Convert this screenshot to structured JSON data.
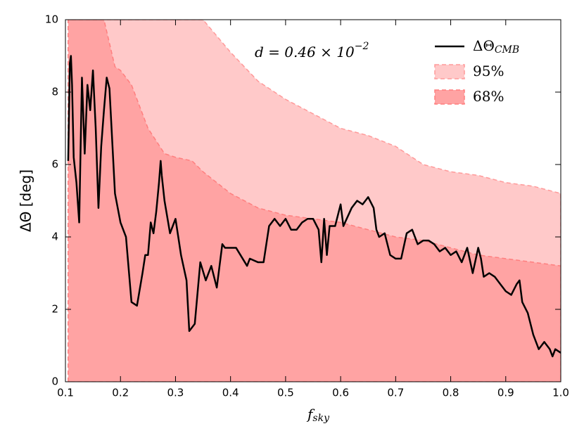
{
  "chart_data": {
    "type": "line",
    "y_label": "ΔΘ [deg]",
    "x_label": {
      "main": "f",
      "sub": "sky"
    },
    "annotation": {
      "main": "d = 0.46 × 10",
      "sup": "−2"
    },
    "xlim": [
      0.1,
      1.0
    ],
    "ylim": [
      0,
      10
    ],
    "xticks": [
      0.1,
      0.2,
      0.3,
      0.4,
      0.5,
      0.6,
      0.7,
      0.8,
      0.9,
      {
        "value": 1.0,
        "label": "1.0"
      }
    ],
    "yticks": [
      0,
      2,
      4,
      6,
      8,
      10
    ],
    "legend_position": "upper right",
    "series": [
      {
        "name": "95%",
        "kind": "area",
        "color": "#ffc9c9",
        "edge_color": "#ff9a9a",
        "x": [
          0.105,
          0.35,
          0.4,
          0.45,
          0.5,
          0.55,
          0.6,
          0.65,
          0.7,
          0.75,
          0.8,
          0.85,
          0.9,
          0.95,
          1.0
        ],
        "values": [
          10,
          10,
          9.1,
          8.3,
          7.8,
          7.4,
          7.0,
          6.8,
          6.5,
          6.0,
          5.8,
          5.7,
          5.5,
          5.4,
          5.2
        ]
      },
      {
        "name": "68%",
        "kind": "area",
        "color": "#ffa3a3",
        "edge_color": "#ff7f7f",
        "x": [
          0.105,
          0.17,
          0.19,
          0.2,
          0.22,
          0.25,
          0.28,
          0.3,
          0.33,
          0.35,
          0.4,
          0.45,
          0.5,
          0.55,
          0.6,
          0.65,
          0.7,
          0.75,
          0.8,
          0.85,
          0.9,
          0.95,
          1.0
        ],
        "values": [
          10,
          10,
          8.7,
          8.6,
          8.2,
          7.0,
          6.3,
          6.2,
          6.1,
          5.8,
          5.2,
          4.8,
          4.6,
          4.5,
          4.4,
          4.2,
          4.0,
          3.9,
          3.7,
          3.5,
          3.4,
          3.3,
          3.2
        ]
      },
      {
        "name": "ΔΘ",
        "name_sub": "CMB",
        "kind": "line",
        "color": "#000000",
        "x": [
          0.105,
          0.108,
          0.11,
          0.112,
          0.115,
          0.12,
          0.125,
          0.13,
          0.135,
          0.14,
          0.145,
          0.15,
          0.155,
          0.16,
          0.165,
          0.17,
          0.175,
          0.18,
          0.19,
          0.2,
          0.21,
          0.22,
          0.23,
          0.24,
          0.245,
          0.25,
          0.255,
          0.26,
          0.265,
          0.27,
          0.273,
          0.275,
          0.28,
          0.29,
          0.3,
          0.31,
          0.32,
          0.325,
          0.335,
          0.345,
          0.355,
          0.365,
          0.375,
          0.385,
          0.39,
          0.41,
          0.43,
          0.435,
          0.45,
          0.46,
          0.47,
          0.48,
          0.49,
          0.5,
          0.51,
          0.52,
          0.53,
          0.54,
          0.55,
          0.56,
          0.565,
          0.57,
          0.575,
          0.58,
          0.59,
          0.6,
          0.605,
          0.62,
          0.63,
          0.64,
          0.65,
          0.66,
          0.665,
          0.67,
          0.68,
          0.69,
          0.7,
          0.71,
          0.72,
          0.73,
          0.74,
          0.75,
          0.76,
          0.77,
          0.78,
          0.79,
          0.8,
          0.81,
          0.82,
          0.83,
          0.84,
          0.85,
          0.855,
          0.86,
          0.87,
          0.88,
          0.89,
          0.9,
          0.91,
          0.92,
          0.925,
          0.93,
          0.94,
          0.95,
          0.96,
          0.97,
          0.98,
          0.985,
          0.99,
          1.0
        ],
        "values": [
          6.1,
          8.8,
          9.0,
          8.2,
          6.2,
          5.5,
          4.4,
          8.4,
          6.3,
          8.2,
          7.5,
          8.6,
          7.0,
          4.8,
          6.5,
          7.5,
          8.4,
          8.1,
          5.2,
          4.4,
          4.0,
          2.2,
          2.1,
          3.0,
          3.5,
          3.5,
          4.4,
          4.1,
          4.7,
          5.5,
          6.1,
          5.7,
          5.0,
          4.1,
          4.5,
          3.5,
          2.8,
          1.4,
          1.6,
          3.3,
          2.8,
          3.2,
          2.6,
          3.8,
          3.7,
          3.7,
          3.2,
          3.4,
          3.3,
          3.3,
          4.3,
          4.5,
          4.3,
          4.5,
          4.2,
          4.2,
          4.4,
          4.5,
          4.5,
          4.2,
          3.3,
          4.5,
          3.5,
          4.3,
          4.3,
          4.9,
          4.3,
          4.8,
          5.0,
          4.9,
          5.1,
          4.8,
          4.2,
          4.0,
          4.1,
          3.5,
          3.4,
          3.4,
          4.1,
          4.2,
          3.8,
          3.9,
          3.9,
          3.8,
          3.6,
          3.7,
          3.5,
          3.6,
          3.3,
          3.7,
          3.0,
          3.7,
          3.4,
          2.9,
          3.0,
          2.9,
          2.7,
          2.5,
          2.4,
          2.7,
          2.8,
          2.2,
          1.9,
          1.3,
          0.9,
          1.1,
          0.9,
          0.7,
          0.9,
          0.8
        ]
      }
    ]
  }
}
